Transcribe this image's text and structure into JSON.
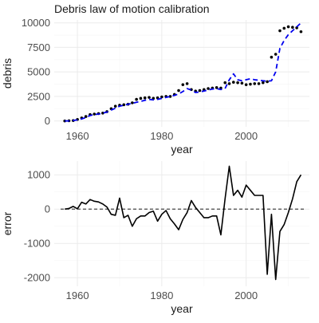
{
  "chart_data": [
    {
      "type": "scatter+line",
      "title": "Debris law of motion calibration",
      "xlabel": "year",
      "ylabel": "debris",
      "xlim": [
        1954.5,
        2015
      ],
      "ylim": [
        -600,
        10300
      ],
      "x_ticks": [
        1960,
        1980,
        2000
      ],
      "x_ticklabels": [
        "1960",
        "1980",
        "2000"
      ],
      "y_ticks": [
        0,
        2500,
        5000,
        7500,
        10000
      ],
      "y_ticklabels": [
        "0",
        "2500",
        "5000",
        "7500",
        "10000"
      ],
      "grid": true,
      "series": [
        {
          "style": "points",
          "color": "#000000",
          "x": [
            1957,
            1958,
            1959,
            1960,
            1961,
            1962,
            1963,
            1964,
            1965,
            1966,
            1967,
            1968,
            1969,
            1970,
            1971,
            1972,
            1973,
            1974,
            1975,
            1976,
            1977,
            1978,
            1979,
            1980,
            1981,
            1982,
            1983,
            1984,
            1985,
            1986,
            1987,
            1988,
            1989,
            1990,
            1991,
            1992,
            1993,
            1994,
            1995,
            1996,
            1997,
            1998,
            1999,
            2000,
            2001,
            2002,
            2003,
            2004,
            2005,
            2006,
            2007,
            2008,
            2009,
            2010,
            2011,
            2012,
            2013
          ],
          "values": [
            0,
            20,
            40,
            150,
            300,
            450,
            650,
            700,
            750,
            800,
            950,
            1250,
            1500,
            1600,
            1650,
            1700,
            1850,
            2200,
            2300,
            2350,
            2400,
            2300,
            2350,
            2450,
            2500,
            2500,
            2700,
            3100,
            3700,
            3800,
            3200,
            3050,
            3100,
            3200,
            3300,
            3350,
            3400,
            3350,
            3900,
            3800,
            3950,
            3900,
            3850,
            3700,
            3750,
            3800,
            3800,
            3900,
            4000,
            6500,
            6800,
            9200,
            9450,
            9600,
            9550,
            9500,
            9100
          ]
        },
        {
          "style": "dashed",
          "color": "#0000ee",
          "x": [
            1957,
            1958,
            1959,
            1960,
            1961,
            1962,
            1963,
            1964,
            1965,
            1966,
            1967,
            1968,
            1969,
            1970,
            1971,
            1972,
            1973,
            1974,
            1975,
            1976,
            1977,
            1978,
            1979,
            1980,
            1981,
            1982,
            1983,
            1984,
            1985,
            1986,
            1987,
            1988,
            1989,
            1990,
            1991,
            1992,
            1993,
            1994,
            1995,
            1996,
            1997,
            1998,
            1999,
            2000,
            2001,
            2002,
            2003,
            2004,
            2005,
            2006,
            2007,
            2008,
            2009,
            2010,
            2011,
            2012,
            2013
          ],
          "values": [
            0,
            0,
            50,
            100,
            200,
            350,
            550,
            650,
            700,
            800,
            900,
            1100,
            1300,
            1500,
            1600,
            1700,
            1800,
            1900,
            2000,
            2100,
            2200,
            2150,
            2200,
            2300,
            2400,
            2500,
            2600,
            2750,
            3000,
            3300,
            3150,
            2900,
            2950,
            3050,
            3150,
            3250,
            3300,
            3200,
            3300,
            4200,
            4800,
            4200,
            4100,
            4200,
            4300,
            4200,
            4150,
            4100,
            4050,
            4100,
            5000,
            7400,
            8200,
            8800,
            9200,
            9600,
            10000
          ]
        }
      ]
    },
    {
      "type": "line",
      "title": "",
      "xlabel": "year",
      "ylabel": "error",
      "xlim": [
        1954.5,
        2015
      ],
      "ylim": [
        -2250,
        1400
      ],
      "x_ticks": [
        1960,
        1980,
        2000
      ],
      "x_ticklabels": [
        "1960",
        "1980",
        "2000"
      ],
      "y_ticks": [
        -2000,
        -1000,
        0,
        1000
      ],
      "y_ticklabels": [
        "-2000",
        "-1000",
        "0",
        "1000"
      ],
      "grid": true,
      "reference_line": {
        "y": 0,
        "style": "dashed",
        "color": "#333333"
      },
      "series": [
        {
          "style": "solid",
          "color": "#000000",
          "x": [
            1957,
            1958,
            1959,
            1960,
            1961,
            1962,
            1963,
            1964,
            1965,
            1966,
            1967,
            1968,
            1969,
            1970,
            1971,
            1972,
            1973,
            1974,
            1975,
            1976,
            1977,
            1978,
            1979,
            1980,
            1981,
            1982,
            1983,
            1984,
            1985,
            1986,
            1987,
            1988,
            1989,
            1990,
            1991,
            1992,
            1993,
            1994,
            1995,
            1996,
            1997,
            1998,
            1999,
            2000,
            2001,
            2002,
            2003,
            2004,
            2005,
            2006,
            2007,
            2008,
            2009,
            2010,
            2011,
            2012,
            2013
          ],
          "values": [
            0,
            20,
            80,
            10,
            200,
            150,
            280,
            230,
            210,
            150,
            60,
            -150,
            -180,
            320,
            -250,
            -180,
            -500,
            -280,
            -200,
            -200,
            -100,
            -60,
            -350,
            -150,
            -40,
            -280,
            -430,
            -600,
            -300,
            -100,
            250,
            50,
            -100,
            -250,
            -250,
            -200,
            -200,
            -750,
            300,
            1250,
            400,
            550,
            350,
            700,
            550,
            400,
            400,
            400,
            -1900,
            -150,
            -2050,
            -650,
            -450,
            -100,
            300,
            800,
            1000
          ]
        }
      ]
    }
  ]
}
